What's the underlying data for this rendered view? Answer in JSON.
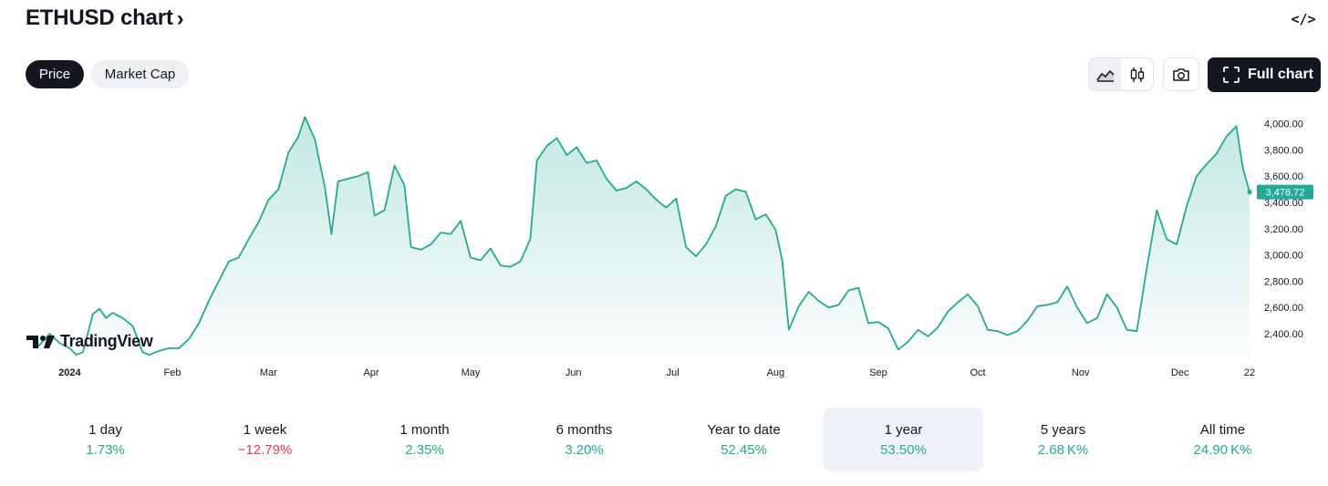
{
  "header": {
    "title": "ETHUSD chart",
    "title_chevron": "›",
    "embed_glyph": "</>"
  },
  "toggles": {
    "price_label": "Price",
    "market_cap_label": "Market Cap"
  },
  "toolbar": {
    "full_chart_label": "Full chart"
  },
  "logo": {
    "text": "TradingView"
  },
  "colors": {
    "line": "#22ab94",
    "area_top": "rgba(34,171,148,0.28)",
    "area_bottom": "rgba(34,171,148,0.02)",
    "positive": "#22ab94",
    "negative": "#f23645"
  },
  "chart_data": {
    "type": "area",
    "title": "",
    "xlabel": "",
    "ylabel": "",
    "x_tick_labels": [
      "2024",
      "Feb",
      "Mar",
      "Apr",
      "May",
      "Jun",
      "Jul",
      "Aug",
      "Sep",
      "Oct",
      "Nov",
      "Dec",
      "22"
    ],
    "x_ticks": [
      "2024-01-01",
      "2024-02-01",
      "2024-03-01",
      "2024-04-01",
      "2024-05-01",
      "2024-06-01",
      "2024-07-01",
      "2024-08-01",
      "2024-09-01",
      "2024-10-01",
      "2024-11-01",
      "2024-12-01",
      "2024-12-22"
    ],
    "y_ticks": [
      2400,
      2600,
      2800,
      3000,
      3200,
      3400,
      3600,
      3800,
      4000
    ],
    "y_tick_labels": [
      "2,400.00",
      "2,600.00",
      "2,800.00",
      "3,000.00",
      "3,200.00",
      "3,400.00",
      "3,600.00",
      "3,800.00",
      "4,000.00"
    ],
    "ylim": [
      2220,
      4080
    ],
    "xlim": [
      "2023-12-22",
      "2024-12-22"
    ],
    "last_value": 3478.72,
    "last_value_label": "3,478.72",
    "grid": false,
    "series": [
      {
        "x": [
          "2023-12-22",
          "2023-12-26",
          "2023-12-29",
          "2024-01-01",
          "2024-01-03",
          "2024-01-05",
          "2024-01-08",
          "2024-01-10",
          "2024-01-12",
          "2024-01-14",
          "2024-01-17",
          "2024-01-20",
          "2024-01-23",
          "2024-01-25",
          "2024-01-28",
          "2024-01-31",
          "2024-02-03",
          "2024-02-06",
          "2024-02-09",
          "2024-02-12",
          "2024-02-15",
          "2024-02-18",
          "2024-02-21",
          "2024-02-24",
          "2024-02-27",
          "2024-03-01",
          "2024-03-04",
          "2024-03-07",
          "2024-03-10",
          "2024-03-12",
          "2024-03-15",
          "2024-03-18",
          "2024-03-20",
          "2024-03-22",
          "2024-03-25",
          "2024-03-28",
          "2024-03-31",
          "2024-04-02",
          "2024-04-05",
          "2024-04-08",
          "2024-04-11",
          "2024-04-13",
          "2024-04-16",
          "2024-04-19",
          "2024-04-22",
          "2024-04-25",
          "2024-04-28",
          "2024-05-01",
          "2024-05-04",
          "2024-05-07",
          "2024-05-10",
          "2024-05-13",
          "2024-05-16",
          "2024-05-19",
          "2024-05-21",
          "2024-05-24",
          "2024-05-27",
          "2024-05-30",
          "2024-06-02",
          "2024-06-05",
          "2024-06-08",
          "2024-06-11",
          "2024-06-14",
          "2024-06-17",
          "2024-06-20",
          "2024-06-23",
          "2024-06-26",
          "2024-06-29",
          "2024-07-02",
          "2024-07-05",
          "2024-07-08",
          "2024-07-11",
          "2024-07-14",
          "2024-07-17",
          "2024-07-20",
          "2024-07-23",
          "2024-07-26",
          "2024-07-29",
          "2024-08-01",
          "2024-08-03",
          "2024-08-05",
          "2024-08-08",
          "2024-08-11",
          "2024-08-14",
          "2024-08-17",
          "2024-08-20",
          "2024-08-23",
          "2024-08-26",
          "2024-08-29",
          "2024-09-01",
          "2024-09-04",
          "2024-09-07",
          "2024-09-10",
          "2024-09-13",
          "2024-09-16",
          "2024-09-19",
          "2024-09-22",
          "2024-09-25",
          "2024-09-28",
          "2024-10-01",
          "2024-10-04",
          "2024-10-07",
          "2024-10-10",
          "2024-10-13",
          "2024-10-16",
          "2024-10-19",
          "2024-10-22",
          "2024-10-25",
          "2024-10-28",
          "2024-10-31",
          "2024-11-03",
          "2024-11-06",
          "2024-11-09",
          "2024-11-12",
          "2024-11-15",
          "2024-11-18",
          "2024-11-21",
          "2024-11-24",
          "2024-11-27",
          "2024-11-30",
          "2024-12-03",
          "2024-12-06",
          "2024-12-09",
          "2024-12-12",
          "2024-12-15",
          "2024-12-18",
          "2024-12-20",
          "2024-12-22"
        ],
        "y": [
          2290,
          2400,
          2330,
          2290,
          2240,
          2260,
          2550,
          2590,
          2520,
          2560,
          2520,
          2460,
          2260,
          2240,
          2270,
          2290,
          2290,
          2360,
          2480,
          2650,
          2800,
          2950,
          2980,
          3120,
          3250,
          3420,
          3500,
          3780,
          3900,
          4050,
          3880,
          3520,
          3160,
          3560,
          3580,
          3600,
          3630,
          3300,
          3340,
          3680,
          3530,
          3060,
          3040,
          3080,
          3170,
          3160,
          3260,
          2980,
          2960,
          3050,
          2920,
          2910,
          2950,
          3120,
          3720,
          3830,
          3890,
          3760,
          3820,
          3700,
          3720,
          3580,
          3490,
          3510,
          3560,
          3500,
          3420,
          3360,
          3430,
          3060,
          2990,
          3080,
          3220,
          3450,
          3500,
          3480,
          3270,
          3310,
          3190,
          2960,
          2430,
          2610,
          2720,
          2650,
          2600,
          2620,
          2730,
          2750,
          2480,
          2490,
          2440,
          2280,
          2340,
          2430,
          2380,
          2450,
          2570,
          2640,
          2700,
          2610,
          2430,
          2420,
          2390,
          2420,
          2500,
          2610,
          2620,
          2640,
          2760,
          2600,
          2480,
          2520,
          2700,
          2600,
          2430,
          2420,
          2900,
          3340,
          3120,
          3080,
          3370,
          3600,
          3690,
          3770,
          3900,
          3980,
          3660,
          3478.72
        ]
      }
    ]
  },
  "ranges": [
    {
      "label": "1 day",
      "value": "1.73%",
      "tone": "pos"
    },
    {
      "label": "1 week",
      "value": "−12.79%",
      "tone": "neg"
    },
    {
      "label": "1 month",
      "value": "2.35%",
      "tone": "pos"
    },
    {
      "label": "6 months",
      "value": "3.20%",
      "tone": "pos"
    },
    {
      "label": "Year to date",
      "value": "52.45%",
      "tone": "pos"
    },
    {
      "label": "1 year",
      "value": "53.50%",
      "tone": "pos",
      "active": true
    },
    {
      "label": "5 years",
      "value": "2.68 K%",
      "tone": "pos"
    },
    {
      "label": "All time",
      "value": "24.90 K%",
      "tone": "pos"
    }
  ]
}
